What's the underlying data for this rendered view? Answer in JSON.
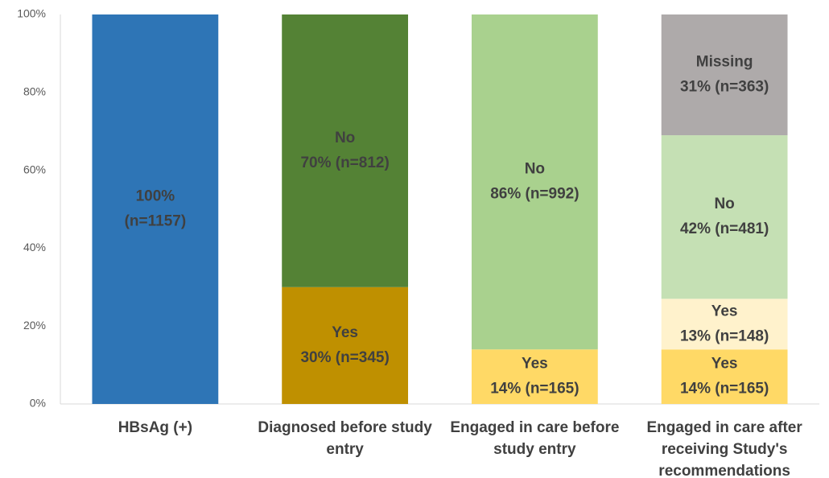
{
  "chart_data": {
    "type": "bar",
    "stacked": true,
    "ylim": [
      0,
      100
    ],
    "y_ticks": [
      "0%",
      "20%",
      "40%",
      "60%",
      "80%",
      "100%"
    ],
    "grid": false,
    "legend": "none",
    "categories": [
      [
        "HBsAg (+)"
      ],
      [
        "Diagnosed before study",
        "entry"
      ],
      [
        "Engaged in care before",
        "study entry"
      ],
      [
        "Engaged in care after",
        "receiving Study's",
        "recommendations"
      ]
    ],
    "bars": [
      [
        {
          "value": 100,
          "color": "#2E75B6",
          "label_color": "#404040",
          "label": [
            "100%",
            "(n=1157)"
          ]
        }
      ],
      [
        {
          "value": 30,
          "color": "#BF9000",
          "label_color": "#404040",
          "label": [
            "Yes",
            "30% (n=345)"
          ]
        },
        {
          "value": 70,
          "color": "#548235",
          "label_color": "#404040",
          "label": [
            "No",
            "70% (n=812)"
          ]
        }
      ],
      [
        {
          "value": 14,
          "color": "#FFD966",
          "label_color": "#404040",
          "label": [
            "Yes",
            "14% (n=165)"
          ]
        },
        {
          "value": 86,
          "color": "#A9D18E",
          "label_color": "#404040",
          "label": [
            "No",
            "86% (n=992)"
          ]
        }
      ],
      [
        {
          "value": 14,
          "color": "#FFD966",
          "label_color": "#404040",
          "label": [
            "Yes",
            "14% (n=165)"
          ]
        },
        {
          "value": 13,
          "color": "#FFF2CC",
          "label_color": "#404040",
          "label": [
            "Yes",
            "13% (n=148)"
          ]
        },
        {
          "value": 42,
          "color": "#C5E0B4",
          "label_color": "#404040",
          "label": [
            "No",
            "42% (n=481)"
          ]
        },
        {
          "value": 31,
          "color": "#AEAAAA",
          "label_color": "#404040",
          "label": [
            "Missing",
            "31% (n=363)"
          ]
        }
      ]
    ]
  }
}
